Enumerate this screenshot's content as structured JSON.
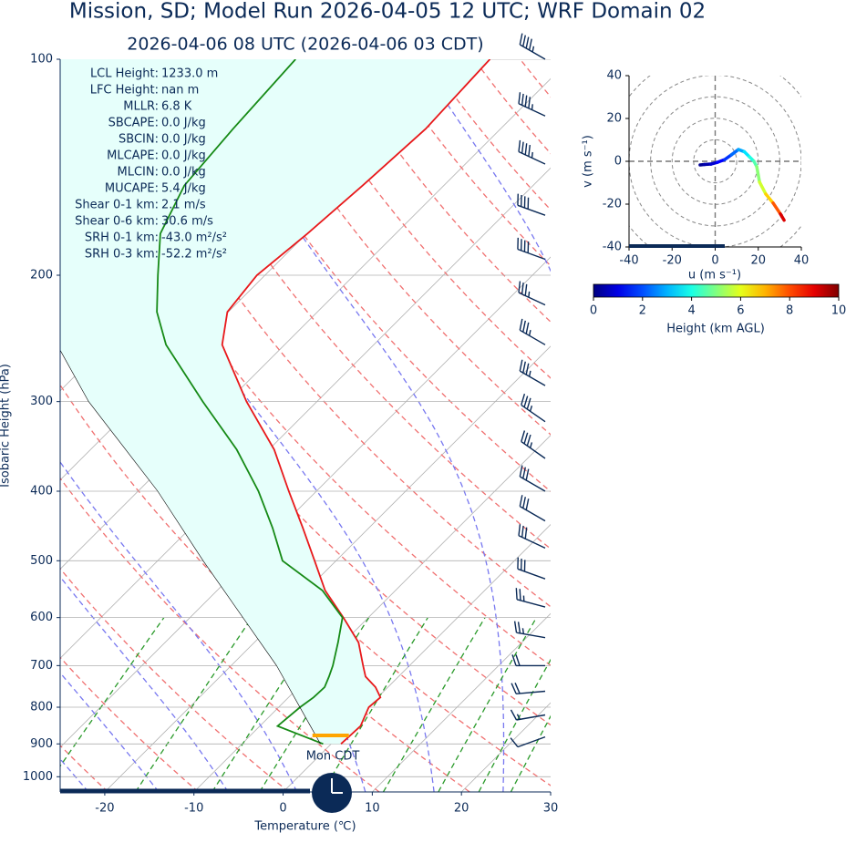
{
  "chart_data": [
    {
      "type": "skewt",
      "title": "Mission, SD; Model Run 2026-04-05 12 UTC; WRF Domain 02",
      "subtitle": "2026-04-06 08 UTC  (2026-04-06 03 CDT)",
      "x_label": "Temperature (℃)",
      "y_label": "Isobaric Height (hPa)",
      "xlim": [
        -25,
        30
      ],
      "ylim": [
        100,
        1050
      ],
      "y_log": true,
      "xticks": [
        -20,
        -10,
        0,
        10,
        20,
        30
      ],
      "yticks": [
        100,
        200,
        300,
        400,
        500,
        600,
        700,
        800,
        900,
        1000
      ],
      "grid": true,
      "series": [
        {
          "color": "#e8191b",
          "pressure": [
            900,
            850,
            800,
            775,
            750,
            725,
            700,
            650,
            600,
            550,
            500,
            450,
            400,
            350,
            300,
            250,
            225,
            200,
            175,
            150,
            125,
            100
          ],
          "values": [
            1.1,
            1.3,
            0.1,
            0.3,
            -1.4,
            -3.7,
            -5.2,
            -8.3,
            -12.8,
            -17.9,
            -22.4,
            -27.4,
            -33.1,
            -39.4,
            -47.9,
            -57.0,
            -60.1,
            -60.9,
            -59.9,
            -59.1,
            -58.4,
            -59.0
          ]
        },
        {
          "color": "#168a16",
          "pressure": [
            900,
            850,
            800,
            775,
            750,
            725,
            700,
            650,
            600,
            550,
            500,
            450,
            400,
            350,
            300,
            250,
            225,
            200,
            175,
            150,
            125,
            100
          ],
          "values": [
            -0.9,
            -8.0,
            -7.6,
            -7.2,
            -7.1,
            -7.8,
            -8.6,
            -10.6,
            -12.9,
            -18.2,
            -26.0,
            -30.8,
            -36.5,
            -43.6,
            -52.8,
            -63.3,
            -68.0,
            -72.0,
            -76.4,
            -79.1,
            -80.0,
            -80.8
          ]
        },
        {
          "color": "#000000",
          "pressure": [
            900,
            700,
            500,
            400,
            300,
            250
          ],
          "values": [
            -1.2,
            -14.9,
            -34.9,
            -47.8,
            -65.6,
            -75.5
          ]
        }
      ],
      "lcl": {
        "pressure": 876,
        "temperature": -1.0,
        "color": "#ffa500"
      },
      "clock_label": "Mon CDT",
      "barbs": {
        "color": "#0b2a57",
        "pressure": [
          100,
          120,
          140,
          165,
          190,
          220,
          250,
          285,
          320,
          360,
          400,
          440,
          480,
          530,
          580,
          640,
          700,
          760,
          820,
          880
        ],
        "speed": [
          45,
          45,
          45,
          40,
          40,
          35,
          35,
          35,
          35,
          35,
          30,
          30,
          30,
          30,
          25,
          25,
          20,
          20,
          15,
          10
        ],
        "direction": [
          300,
          295,
          295,
          290,
          290,
          295,
          300,
          300,
          305,
          305,
          300,
          300,
          295,
          290,
          285,
          280,
          270,
          265,
          260,
          250
        ]
      },
      "stats": [
        {
          "label": "LCL Height:",
          "value": "1233.0 m"
        },
        {
          "label": "LFC Height:",
          "value": "nan m"
        },
        {
          "label": "MLLR:",
          "value": "6.8 K"
        },
        {
          "label": "SBCAPE:",
          "value": "0.0 J/kg"
        },
        {
          "label": "SBCIN:",
          "value": "0.0 J/kg"
        },
        {
          "label": "MLCAPE:",
          "value": "0.0 J/kg"
        },
        {
          "label": "MLCIN:",
          "value": "0.0 J/kg"
        },
        {
          "label": "MUCAPE:",
          "value": "5.4 J/kg"
        },
        {
          "label": "Shear 0-1 km:",
          "value": "2.1 m/s"
        },
        {
          "label": "Shear 0-6 km:",
          "value": "30.6 m/s"
        },
        {
          "label": "SRH 0-1 km:",
          "value": "-43.0 m²/s²"
        },
        {
          "label": "SRH 0-3 km:",
          "value": "-52.2 m²/s²"
        }
      ]
    },
    {
      "type": "hodograph",
      "x_label": "u (m s⁻¹)",
      "y_label": "v (m s⁻¹)",
      "xlim": [
        -40,
        40
      ],
      "ylim": [
        -40,
        40
      ],
      "xticks": [
        -40,
        -20,
        0,
        20,
        40
      ],
      "yticks": [
        -40,
        -20,
        0,
        20,
        40
      ],
      "u": [
        -7,
        -5,
        -2,
        1,
        4.4,
        7.5,
        10.8,
        13.5,
        15.9,
        18,
        19.3,
        20.6,
        23.5,
        26.9,
        30.3,
        32
      ],
      "v": [
        -1.7,
        -1.5,
        -1.3,
        -0.5,
        0.8,
        3,
        5.5,
        4.5,
        2.1,
        0,
        -2.5,
        -9.7,
        -15.3,
        -19.5,
        -24.6,
        -27.5
      ],
      "heights": [
        0.1,
        0.3,
        0.6,
        1.0,
        1.5,
        2.0,
        2.6,
        3.2,
        3.8,
        4.3,
        4.8,
        5.4,
        6.2,
        7.2,
        8.6,
        9.6
      ],
      "colorbar": {
        "label": "Height (km AGL)",
        "lim": [
          0,
          10
        ],
        "ticks": [
          0,
          2,
          4,
          6,
          8,
          10
        ]
      }
    }
  ]
}
